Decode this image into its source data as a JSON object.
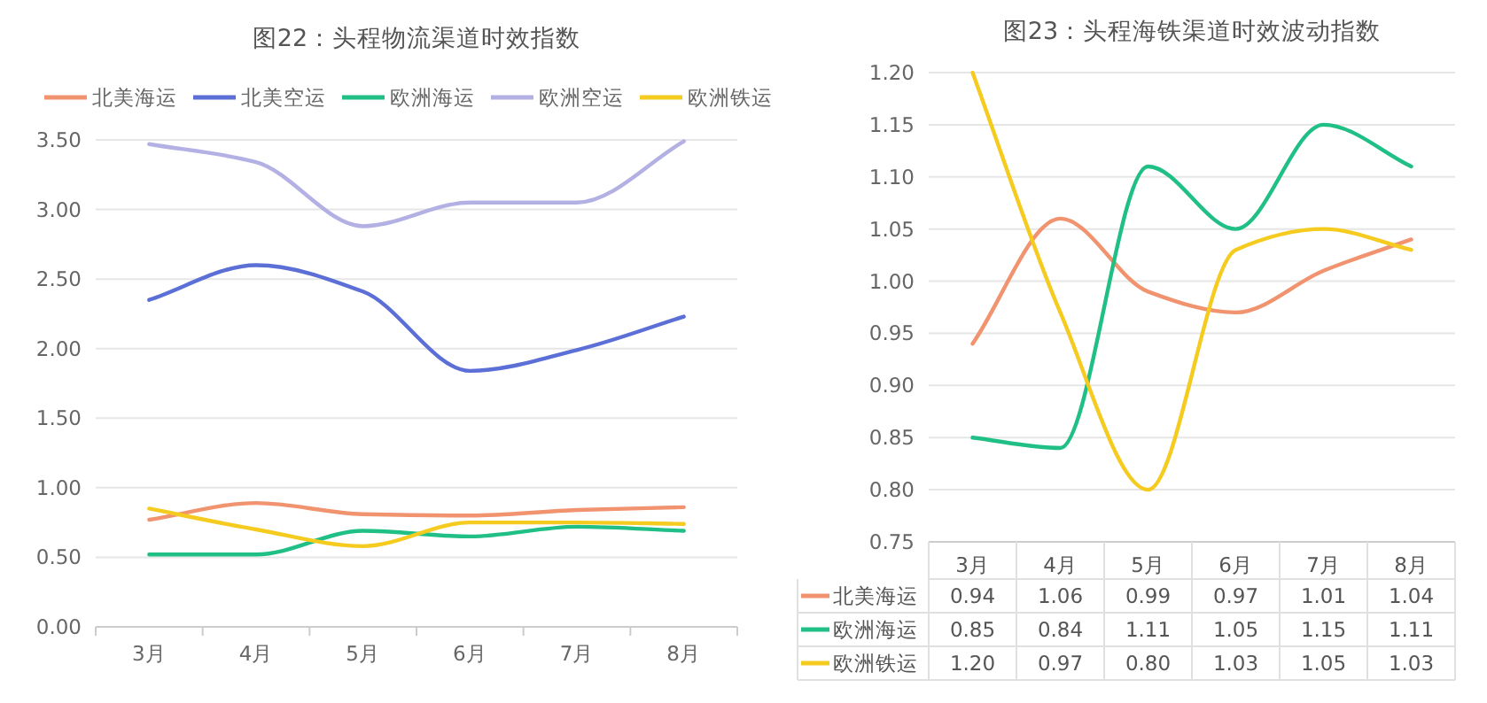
{
  "chart_data": [
    {
      "type": "line",
      "title": "图22：头程物流渠道时效指数",
      "categories": [
        "3月",
        "4月",
        "5月",
        "6月",
        "7月",
        "8月"
      ],
      "series": [
        {
          "name": "北美海运",
          "color": "#f0936e",
          "values": [
            0.77,
            0.89,
            0.81,
            0.8,
            0.84,
            0.86
          ]
        },
        {
          "name": "北美空运",
          "color": "#5b6fd6",
          "values": [
            2.35,
            2.6,
            2.41,
            1.84,
            1.99,
            2.23
          ]
        },
        {
          "name": "欧洲海运",
          "color": "#1fbf86",
          "values": [
            0.52,
            0.52,
            0.69,
            0.65,
            0.72,
            0.69
          ]
        },
        {
          "name": "欧洲空运",
          "color": "#b3b0e3",
          "values": [
            3.47,
            3.34,
            2.88,
            3.05,
            3.05,
            3.49
          ]
        },
        {
          "name": "欧洲铁运",
          "color": "#f5cb20",
          "values": [
            0.85,
            0.7,
            0.58,
            0.75,
            0.75,
            0.74
          ]
        }
      ],
      "ylim": [
        0,
        3.5
      ],
      "yticks": [
        {
          "value": 0,
          "label": "0.00"
        },
        {
          "value": 0.5,
          "label": "0.50"
        },
        {
          "value": 1,
          "label": "1.00"
        },
        {
          "value": 1.5,
          "label": "1.50"
        },
        {
          "value": 2,
          "label": "2.00"
        },
        {
          "value": 2.5,
          "label": "2.50"
        },
        {
          "value": 3,
          "label": "3.00"
        },
        {
          "value": 3.5,
          "label": "3.50"
        }
      ],
      "grid": "y",
      "legend": "top",
      "marker": "none",
      "line_style": "solid"
    },
    {
      "type": "line",
      "title": "图23：头程海铁渠道时效波动指数",
      "categories": [
        "3月",
        "4月",
        "5月",
        "6月",
        "7月",
        "8月"
      ],
      "series": [
        {
          "name": "北美海运",
          "color": "#f0936e",
          "values": [
            0.94,
            1.06,
            0.99,
            0.97,
            1.01,
            1.04
          ],
          "value_labels": [
            "0.94",
            "1.06",
            "0.99",
            "0.97",
            "1.01",
            "1.04"
          ]
        },
        {
          "name": "欧洲海运",
          "color": "#1fbf86",
          "values": [
            0.85,
            0.84,
            1.11,
            1.05,
            1.15,
            1.11
          ],
          "value_labels": [
            "0.85",
            "0.84",
            "1.11",
            "1.05",
            "1.15",
            "1.11"
          ]
        },
        {
          "name": "欧洲铁运",
          "color": "#f5cb20",
          "values": [
            1.2,
            0.97,
            0.8,
            1.03,
            1.05,
            1.03
          ],
          "value_labels": [
            "1.20",
            "0.97",
            "0.80",
            "1.03",
            "1.05",
            "1.03"
          ]
        }
      ],
      "ylim": [
        0.75,
        1.2
      ],
      "yticks": [
        {
          "value": 0.75,
          "label": "0.75"
        },
        {
          "value": 0.8,
          "label": "0.80"
        },
        {
          "value": 0.85,
          "label": "0.85"
        },
        {
          "value": 0.9,
          "label": "0.90"
        },
        {
          "value": 0.95,
          "label": "0.95"
        },
        {
          "value": 1,
          "label": "1.00"
        },
        {
          "value": 1.05,
          "label": "1.05"
        },
        {
          "value": 1.1,
          "label": "1.10"
        },
        {
          "value": 1.15,
          "label": "1.15"
        },
        {
          "value": 1.2,
          "label": "1.20"
        }
      ],
      "grid": "y",
      "legend": "bottom",
      "marker": "none",
      "line_style": "solid"
    }
  ]
}
